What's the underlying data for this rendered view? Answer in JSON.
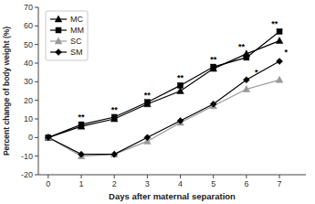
{
  "chart_data": {
    "type": "line",
    "x": [
      0,
      1,
      2,
      3,
      4,
      5,
      6,
      7
    ],
    "series": [
      {
        "name": "MC",
        "color": "black",
        "marker": "triangle",
        "values": [
          0,
          6,
          10,
          18,
          25,
          37,
          45,
          52
        ]
      },
      {
        "name": "MM",
        "color": "black",
        "marker": "square",
        "values": [
          0,
          7,
          11,
          19,
          28,
          38,
          43,
          57
        ]
      },
      {
        "name": "SC",
        "color": "#999999",
        "marker": "triangle",
        "values": [
          0,
          -10,
          -9,
          -2,
          8,
          17,
          26,
          31
        ]
      },
      {
        "name": "SM",
        "color": "black",
        "marker": "diamond",
        "values": [
          0,
          -9,
          -9,
          0,
          9,
          18,
          31,
          41
        ]
      }
    ],
    "xlabel": "Days after maternal separation",
    "ylabel": "Percent change of body weight (%)",
    "xlim": [
      -0.3,
      7.8
    ],
    "ylim": [
      -20,
      70
    ],
    "xticks": [
      0,
      1,
      2,
      3,
      4,
      5,
      6,
      7
    ],
    "yticks": [
      -20,
      -10,
      0,
      10,
      20,
      30,
      40,
      50,
      60,
      70
    ],
    "annotations": [
      {
        "x": 1,
        "y": 9,
        "text": "**"
      },
      {
        "x": 2,
        "y": 13,
        "text": "**"
      },
      {
        "x": 3,
        "y": 21,
        "text": "**"
      },
      {
        "x": 4,
        "y": 30,
        "text": "**"
      },
      {
        "x": 5,
        "y": 40,
        "text": "**"
      },
      {
        "x": 5.85,
        "y": 47,
        "text": "**"
      },
      {
        "x": 6.3,
        "y": 33,
        "text": "*"
      },
      {
        "x": 6.85,
        "y": 59,
        "text": "**"
      },
      {
        "x": 7.2,
        "y": 44,
        "text": "*"
      }
    ],
    "legend": "upper left",
    "grid": false
  }
}
